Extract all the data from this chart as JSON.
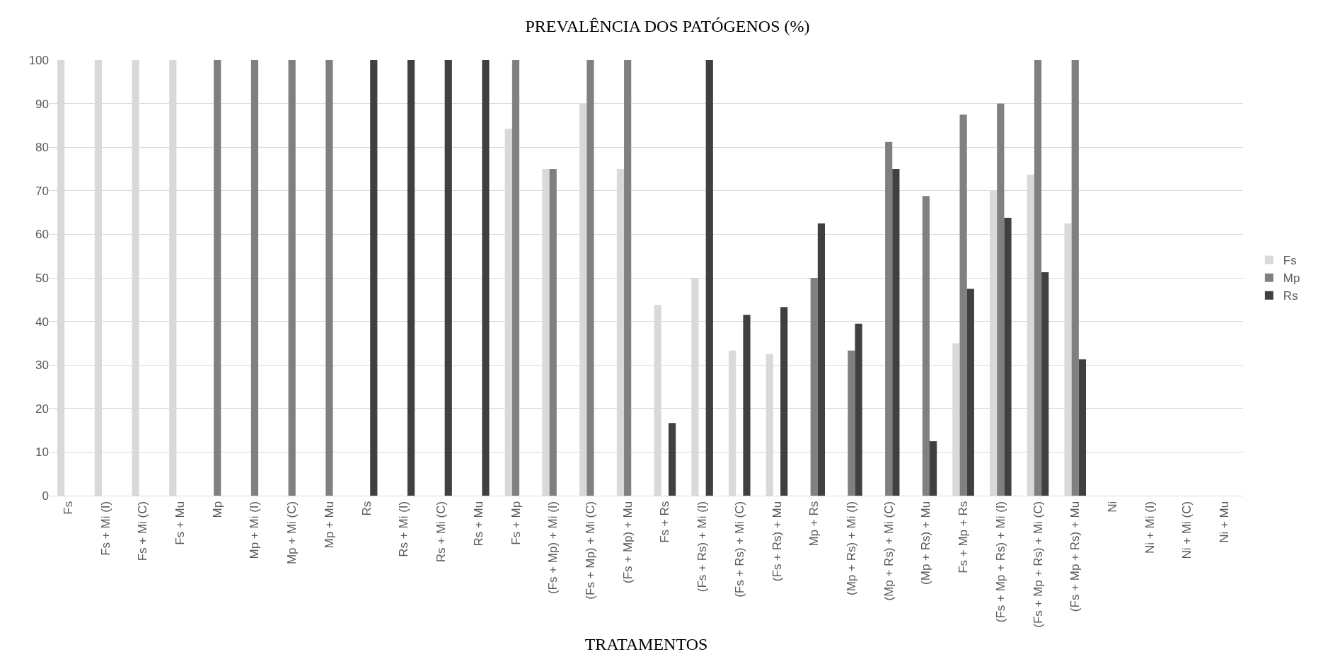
{
  "chart_data": {
    "type": "bar",
    "title": "PREVALÊNCIA DOS PATÓGENOS (%)",
    "xlabel": "TRATAMENTOS",
    "categories": [
      "Fs",
      "Fs + Mi (I)",
      "Fs + Mi (C)",
      "Fs + Mu",
      "Mp",
      "Mp + Mi (I)",
      "Mp + Mi (C)",
      "Mp + Mu",
      "Rs",
      "Rs + Mi (I)",
      "Rs + Mi (C)",
      "Rs + Mu",
      "Fs + Mp",
      "(Fs + Mp) + Mi (I)",
      "(Fs + Mp) + Mi (C)",
      "(Fs + Mp) + Mu",
      "Fs + Rs",
      "(Fs + Rs) + Mi (I)",
      "(Fs + Rs) + Mi (C)",
      "(Fs + Rs) + Mu",
      "Mp + Rs",
      "(Mp + Rs) + Mi (I)",
      "(Mp + Rs) + Mi (C)",
      "(Mp + Rs) + Mu",
      "Fs + Mp + Rs",
      "(Fs + Mp + Rs) + Mi (I)",
      "(Fs + Mp + Rs) + Mi (C)",
      "(Fs + Mp + Rs) + Mu",
      "Ni",
      "Ni + Mi (I)",
      "Ni + Mi (C)",
      "Ni + Mu"
    ],
    "series": [
      {
        "name": "Fs",
        "color": "#d9d9d9",
        "values": [
          100,
          100,
          100,
          100,
          0,
          0,
          0,
          0,
          0,
          0,
          0,
          0,
          84.2,
          75,
          90,
          75,
          43.8,
          50,
          33.3,
          32.5,
          0,
          0,
          0,
          0,
          35,
          70,
          73.7,
          62.5,
          0,
          0,
          0,
          0
        ]
      },
      {
        "name": "Mp",
        "color": "#808080",
        "values": [
          0,
          0,
          0,
          0,
          100,
          100,
          100,
          100,
          0,
          0,
          0,
          0,
          100,
          75,
          100,
          100,
          0,
          0,
          0,
          0,
          50,
          33.3,
          81.2,
          68.8,
          87.5,
          90,
          100,
          100,
          0,
          0,
          0,
          0
        ]
      },
      {
        "name": "Rs",
        "color": "#404040",
        "values": [
          0,
          0,
          0,
          0,
          0,
          0,
          0,
          0,
          100,
          100,
          100,
          100,
          0,
          0,
          0,
          0,
          16.7,
          100,
          41.5,
          43.3,
          62.5,
          39.5,
          75,
          12.5,
          47.5,
          63.8,
          51.3,
          31.3,
          0,
          0,
          0,
          0
        ]
      }
    ],
    "ylim": [
      0,
      100
    ],
    "yticks": [
      0,
      10,
      20,
      30,
      40,
      50,
      60,
      70,
      80,
      90,
      100
    ],
    "grid": "y",
    "legend": "right"
  }
}
